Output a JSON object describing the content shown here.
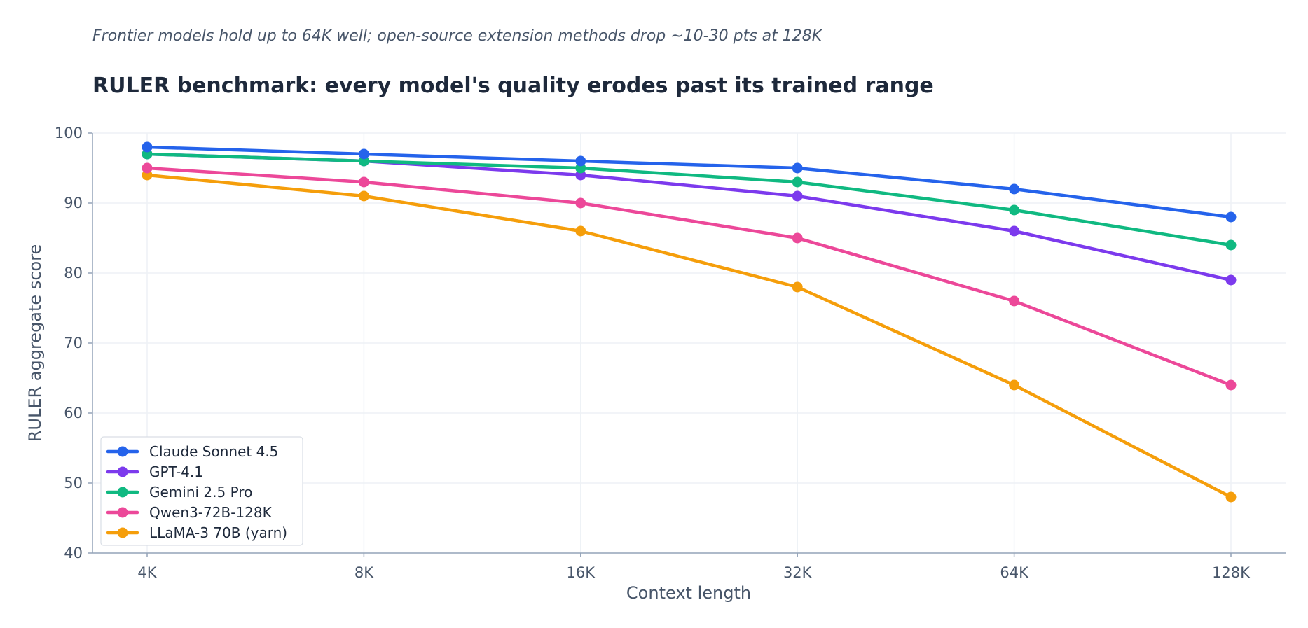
{
  "chart_data": {
    "type": "line",
    "subtitle": "Frontier models hold up to 64K well; open-source extension methods drop ~10-30 pts at 128K",
    "title": "RULER benchmark: every model's quality erodes past its trained range",
    "xlabel": "Context length",
    "ylabel": "RULER aggregate score",
    "categories": [
      "4K",
      "8K",
      "16K",
      "32K",
      "64K",
      "128K"
    ],
    "ylim": [
      40,
      100
    ],
    "yticks": [
      40,
      50,
      60,
      70,
      80,
      90,
      100
    ],
    "grid": true,
    "legend_position": "lower-left",
    "series": [
      {
        "name": "Claude Sonnet 4.5",
        "color": "#2563eb",
        "values": [
          98,
          97,
          96,
          95,
          92,
          88
        ]
      },
      {
        "name": "GPT-4.1",
        "color": "#7c3aed",
        "values": [
          97,
          96,
          94,
          91,
          86,
          79
        ]
      },
      {
        "name": "Gemini 2.5 Pro",
        "color": "#10b981",
        "values": [
          97,
          96,
          95,
          93,
          89,
          84
        ]
      },
      {
        "name": "Qwen3-72B-128K",
        "color": "#ec4899",
        "values": [
          95,
          93,
          90,
          85,
          76,
          64
        ]
      },
      {
        "name": "LLaMA-3 70B (yarn)",
        "color": "#f59e0b",
        "values": [
          94,
          91,
          86,
          78,
          64,
          48
        ]
      }
    ]
  }
}
